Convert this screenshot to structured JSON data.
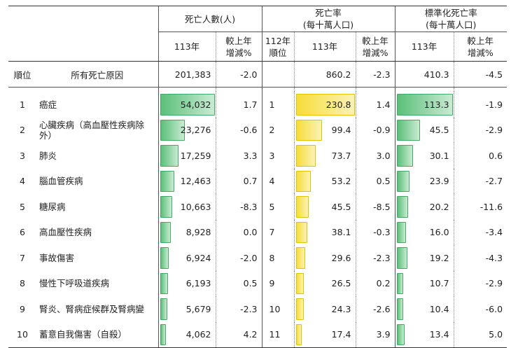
{
  "headers": {
    "death_count": "死亡人數(人)",
    "death_rate_l1": "死亡率",
    "death_rate_l2": "(每十萬人口)",
    "std_rate_l1": "標準化死亡率",
    "std_rate_l2": "(每十萬人口)",
    "year113": "113年",
    "change_l1": "較上年",
    "change_l2": "增減%",
    "rank112_l1": "112年",
    "rank112_l2": "順位",
    "rank": "順位",
    "all_causes": "所有死亡原因"
  },
  "total": {
    "count": "201,383",
    "count_change": "-2.0",
    "rate": "860.2",
    "rate_change": "-2.3",
    "std_rate": "410.3",
    "std_change": "-4.5"
  },
  "colors": {
    "count_bar": "#5bbf7a",
    "rate_bar": "#f6dd3a",
    "std_bar": "#5bbf7a"
  },
  "rows": [
    {
      "rank": "1",
      "cause": "癌症",
      "count": "54,032",
      "count_value": 54032,
      "count_change": "1.7",
      "rank112": "1",
      "rate": "230.8",
      "rate_value": 230.8,
      "rate_change": "1.4",
      "std_rate": "113.3",
      "std_value": 113.3,
      "std_change": "-1.9"
    },
    {
      "rank": "2",
      "cause": "心臟疾病（高血壓性疾病除外）",
      "count": "23,276",
      "count_value": 23276,
      "count_change": "-0.6",
      "rank112": "2",
      "rate": "99.4",
      "rate_value": 99.4,
      "rate_change": "-0.9",
      "std_rate": "45.5",
      "std_value": 45.5,
      "std_change": "-2.9"
    },
    {
      "rank": "3",
      "cause": "肺炎",
      "count": "17,259",
      "count_value": 17259,
      "count_change": "3.3",
      "rank112": "3",
      "rate": "73.7",
      "rate_value": 73.7,
      "rate_change": "3.0",
      "std_rate": "30.1",
      "std_value": 30.1,
      "std_change": "0.6"
    },
    {
      "rank": "4",
      "cause": "腦血管疾病",
      "count": "12,463",
      "count_value": 12463,
      "count_change": "0.7",
      "rank112": "4",
      "rate": "53.2",
      "rate_value": 53.2,
      "rate_change": "0.5",
      "std_rate": "23.9",
      "std_value": 23.9,
      "std_change": "-2.7"
    },
    {
      "rank": "5",
      "cause": "糖尿病",
      "count": "10,663",
      "count_value": 10663,
      "count_change": "-8.3",
      "rank112": "5",
      "rate": "45.5",
      "rate_value": 45.5,
      "rate_change": "-8.5",
      "std_rate": "20.2",
      "std_value": 20.2,
      "std_change": "-11.6"
    },
    {
      "rank": "6",
      "cause": "高血壓性疾病",
      "count": "8,928",
      "count_value": 8928,
      "count_change": "0.0",
      "rank112": "7",
      "rate": "38.1",
      "rate_value": 38.1,
      "rate_change": "-0.3",
      "std_rate": "16.0",
      "std_value": 16.0,
      "std_change": "-3.4"
    },
    {
      "rank": "7",
      "cause": "事故傷害",
      "count": "6,924",
      "count_value": 6924,
      "count_change": "-2.0",
      "rank112": "8",
      "rate": "29.6",
      "rate_value": 29.6,
      "rate_change": "-2.3",
      "std_rate": "19.2",
      "std_value": 19.2,
      "std_change": "-4.3"
    },
    {
      "rank": "8",
      "cause": "慢性下呼吸道疾病",
      "count": "6,193",
      "count_value": 6193,
      "count_change": "0.5",
      "rank112": "9",
      "rate": "26.5",
      "rate_value": 26.5,
      "rate_change": "0.2",
      "std_rate": "10.7",
      "std_value": 10.7,
      "std_change": "-2.9"
    },
    {
      "rank": "9",
      "cause": "腎炎、腎病症候群及腎病變",
      "count": "5,679",
      "count_value": 5679,
      "count_change": "-2.3",
      "rank112": "10",
      "rate": "24.3",
      "rate_value": 24.3,
      "rate_change": "-2.6",
      "std_rate": "10.4",
      "std_value": 10.4,
      "std_change": "-6.0"
    },
    {
      "rank": "10",
      "cause": "蓄意自我傷害（自殺）",
      "count": "4,062",
      "count_value": 4062,
      "count_change": "4.2",
      "rank112": "11",
      "rate": "17.4",
      "rate_value": 17.4,
      "rate_change": "3.9",
      "std_rate": "13.4",
      "std_value": 13.4,
      "std_change": "5.0"
    }
  ]
}
